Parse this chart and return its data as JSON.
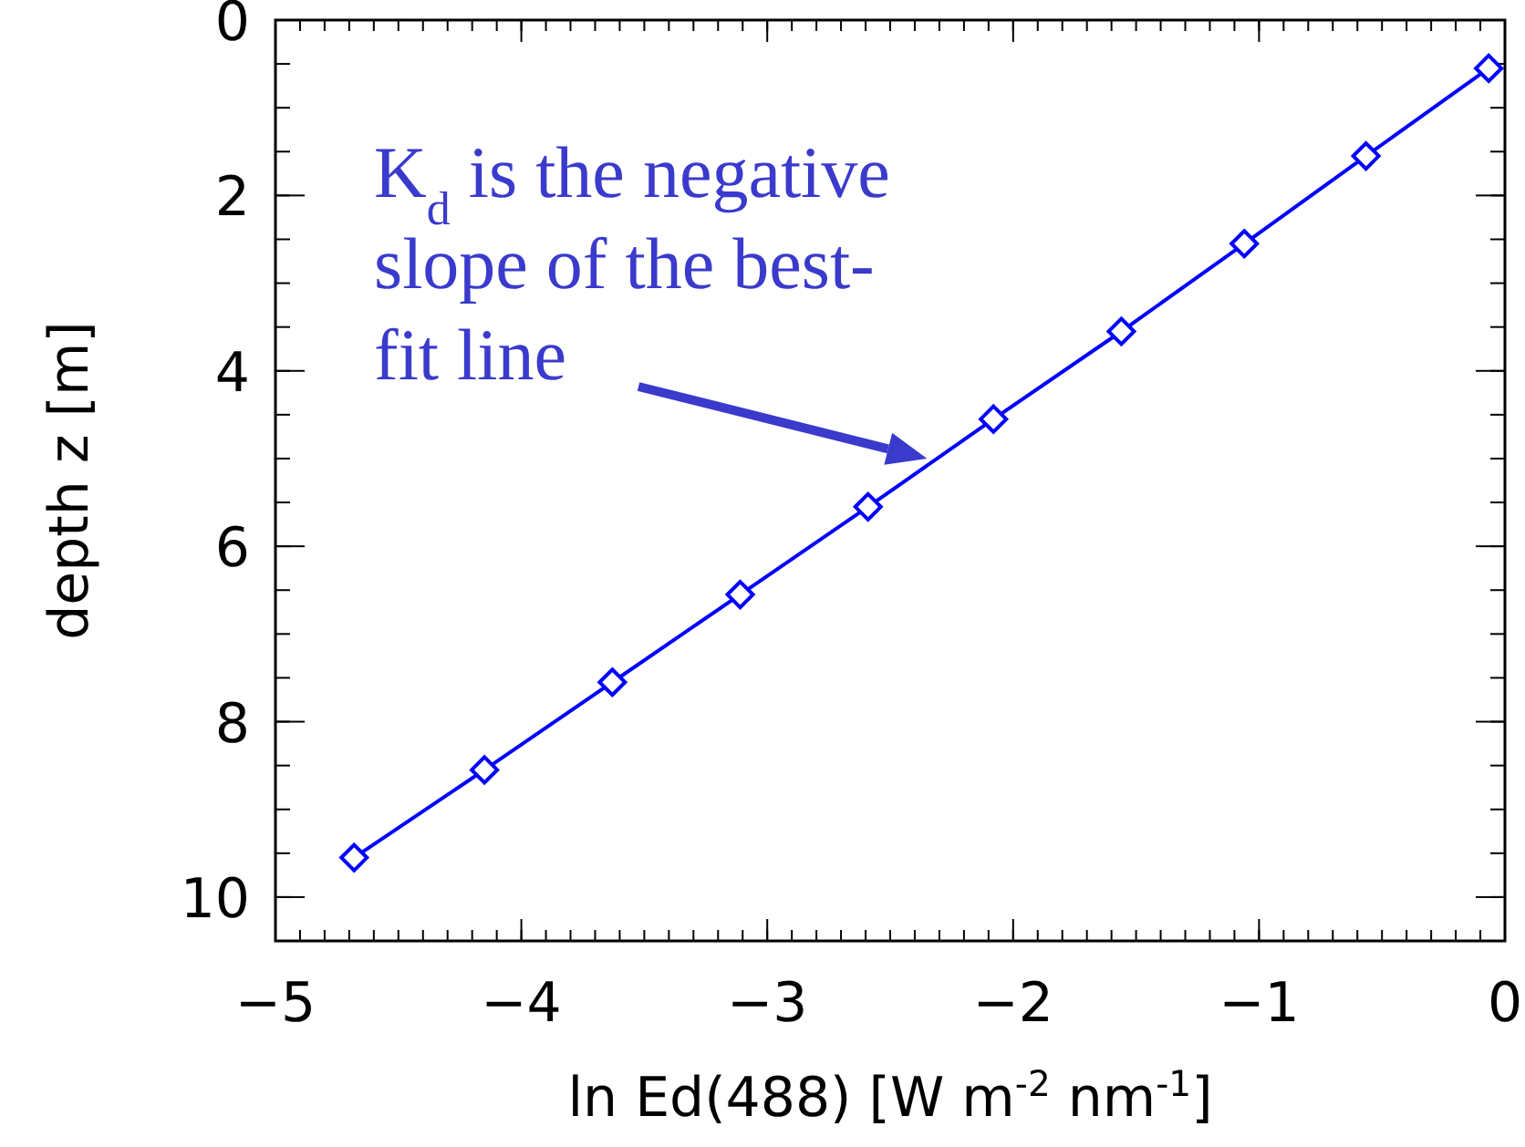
{
  "chart_data": {
    "type": "line",
    "xlabel": "ln Ed(488)  [W m$^{-2}$ nm$^{-1}$]",
    "ylabel": "depth z  [m]",
    "x": [
      -4.68,
      -4.15,
      -3.63,
      -3.11,
      -2.59,
      -2.08,
      -1.56,
      -1.06,
      -0.565,
      -0.066
    ],
    "series": [
      {
        "color": "#0000ff",
        "values": [
          9.55,
          8.55,
          7.55,
          6.55,
          5.55,
          4.55,
          3.55,
          2.55,
          1.55,
          0.55
        ]
      }
    ],
    "xlim": [
      -5,
      0
    ],
    "xticks": [
      -5,
      -4,
      -3,
      -2,
      -1,
      0
    ],
    "ylim": [
      10.5,
      0
    ],
    "yticks": [
      0,
      2,
      4,
      6,
      8,
      10
    ],
    "marker": "diamond",
    "line_style": "solid",
    "annotations": [
      {
        "text": "K$_{d}$ is the negative slope of the best-fit line",
        "x": -2.35,
        "y": 5.0
      }
    ]
  }
}
